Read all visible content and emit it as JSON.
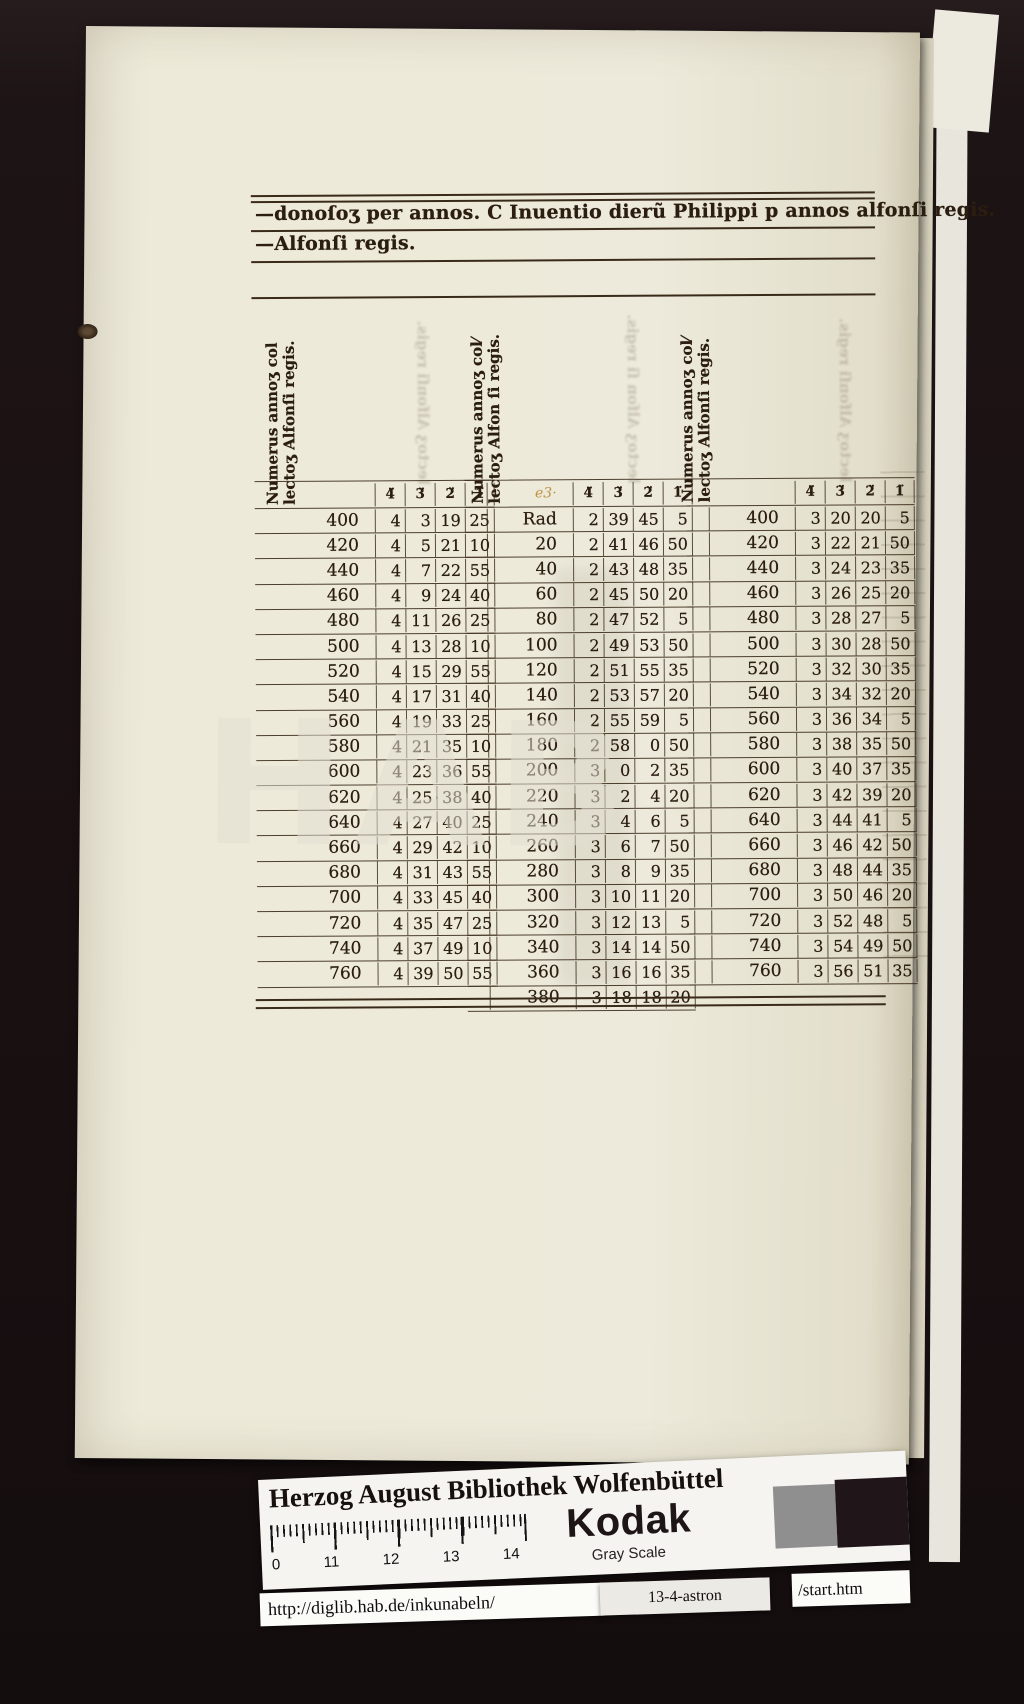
{
  "document": {
    "header_line1": "—donoſoʒ per annos.  C Inuentio dierũ Philippi p annos alfonſi regis.",
    "header_line2": "—Alfonſi regis.",
    "watermark": "HAB"
  },
  "tables": [
    {
      "rotated_header_line1": "Numerus annoʒ col",
      "rotated_header_line2": "lectoʒ Alfonſi regis.",
      "col_headers": [
        "4̈",
        "3̈",
        "2̈",
        "1̈"
      ],
      "annotation": "",
      "rows": [
        [
          "400",
          "4",
          "3",
          "19",
          "25"
        ],
        [
          "420",
          "4",
          "5",
          "21",
          "10"
        ],
        [
          "440",
          "4",
          "7",
          "22",
          "55"
        ],
        [
          "460",
          "4",
          "9",
          "24",
          "40"
        ],
        [
          "480",
          "4",
          "11",
          "26",
          "25"
        ],
        [
          "500",
          "4",
          "13",
          "28",
          "10"
        ],
        [
          "520",
          "4",
          "15",
          "29",
          "55"
        ],
        [
          "540",
          "4",
          "17",
          "31",
          "40"
        ],
        [
          "560",
          "4",
          "19",
          "33",
          "25"
        ],
        [
          "580",
          "4",
          "21",
          "35",
          "10"
        ],
        [
          "600",
          "4",
          "23",
          "36",
          "55"
        ],
        [
          "620",
          "4",
          "25",
          "38",
          "40"
        ],
        [
          "640",
          "4",
          "27",
          "40",
          "25"
        ],
        [
          "660",
          "4",
          "29",
          "42",
          "10"
        ],
        [
          "680",
          "4",
          "31",
          "43",
          "55"
        ],
        [
          "700",
          "4",
          "33",
          "45",
          "40"
        ],
        [
          "720",
          "4",
          "35",
          "47",
          "25"
        ],
        [
          "740",
          "4",
          "37",
          "49",
          "10"
        ],
        [
          "760",
          "4",
          "39",
          "50",
          "55"
        ]
      ]
    },
    {
      "rotated_header_line1": "Numerus annoʒ col⁄",
      "rotated_header_line2": "lectoʒ Alfon ſi regis.",
      "col_headers": [
        "4̈",
        "3̈",
        "2̈",
        "1̈"
      ],
      "annotation": "e3·",
      "rows": [
        [
          "Rad",
          "2",
          "39",
          "45",
          "5"
        ],
        [
          "20",
          "2",
          "41",
          "46",
          "50"
        ],
        [
          "40",
          "2",
          "43",
          "48",
          "35"
        ],
        [
          "60",
          "2",
          "45",
          "50",
          "20"
        ],
        [
          "80",
          "2",
          "47",
          "52",
          "5"
        ],
        [
          "100",
          "2",
          "49",
          "53",
          "50"
        ],
        [
          "120",
          "2",
          "51",
          "55",
          "35"
        ],
        [
          "140",
          "2",
          "53",
          "57",
          "20"
        ],
        [
          "160",
          "2",
          "55",
          "59",
          "5"
        ],
        [
          "180",
          "2",
          "58",
          "0",
          "50"
        ],
        [
          "200",
          "3",
          "0",
          "2",
          "35"
        ],
        [
          "220",
          "3",
          "2",
          "4",
          "20"
        ],
        [
          "240",
          "3",
          "4",
          "6",
          "5"
        ],
        [
          "260",
          "3",
          "6",
          "7",
          "50"
        ],
        [
          "280",
          "3",
          "8",
          "9",
          "35"
        ],
        [
          "300",
          "3",
          "10",
          "11",
          "20"
        ],
        [
          "320",
          "3",
          "12",
          "13",
          "5"
        ],
        [
          "340",
          "3",
          "14",
          "14",
          "50"
        ],
        [
          "360",
          "3",
          "16",
          "16",
          "35"
        ],
        [
          "380",
          "3",
          "18",
          "18",
          "20"
        ]
      ]
    },
    {
      "rotated_header_line1": "Numerus annoʒ col⁄",
      "rotated_header_line2": "lectoʒ Alfonſi regis.",
      "col_headers": [
        "4̈",
        "3̈",
        "2̈",
        "1̈"
      ],
      "annotation": "",
      "rows": [
        [
          "400",
          "3",
          "20",
          "20",
          "5"
        ],
        [
          "420",
          "3",
          "22",
          "21",
          "50"
        ],
        [
          "440",
          "3",
          "24",
          "23",
          "35"
        ],
        [
          "460",
          "3",
          "26",
          "25",
          "20"
        ],
        [
          "480",
          "3",
          "28",
          "27",
          "5"
        ],
        [
          "500",
          "3",
          "30",
          "28",
          "50"
        ],
        [
          "520",
          "3",
          "32",
          "30",
          "35"
        ],
        [
          "540",
          "3",
          "34",
          "32",
          "20"
        ],
        [
          "560",
          "3",
          "36",
          "34",
          "5"
        ],
        [
          "580",
          "3",
          "38",
          "35",
          "50"
        ],
        [
          "600",
          "3",
          "40",
          "37",
          "35"
        ],
        [
          "620",
          "3",
          "42",
          "39",
          "20"
        ],
        [
          "640",
          "3",
          "44",
          "41",
          "5"
        ],
        [
          "660",
          "3",
          "46",
          "42",
          "50"
        ],
        [
          "680",
          "3",
          "48",
          "44",
          "35"
        ],
        [
          "700",
          "3",
          "50",
          "46",
          "20"
        ],
        [
          "720",
          "3",
          "52",
          "48",
          "5"
        ],
        [
          "740",
          "3",
          "54",
          "49",
          "50"
        ],
        [
          "760",
          "3",
          "56",
          "51",
          "35"
        ]
      ]
    }
  ],
  "footer": {
    "library_title": "Herzog August Bibliothek Wolfenbüttel",
    "ruler_numbers": [
      "0",
      "11",
      "12",
      "13",
      "14"
    ],
    "kodak_label": "Kodak",
    "kodak_sublabel": "Gray Scale",
    "url": "http://diglib.hab.de/inkunabeln/",
    "shelfmark": "13-4-astron",
    "start_link": "/start.htm"
  },
  "colors": {
    "background": "#1b1213",
    "paper": "#ece9da",
    "ink": "#2b1d10",
    "card_white": "#f5f4f0",
    "gray_patch": "#8f8f8f",
    "dark_patch": "#20161a"
  }
}
